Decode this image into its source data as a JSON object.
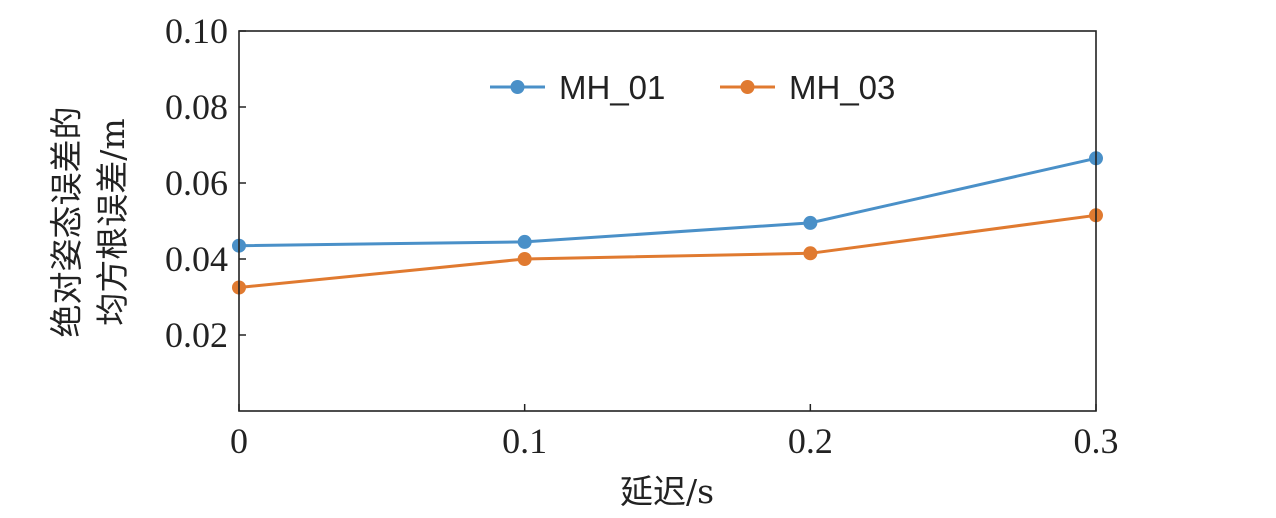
{
  "chart_data": {
    "type": "line",
    "x": [
      0,
      0.1,
      0.2,
      0.3
    ],
    "x_tick_labels": [
      "0",
      "0.1",
      "0.2",
      "0.3"
    ],
    "y_tick_labels": [
      "0.02",
      "0.04",
      "0.06",
      "0.08",
      "0.10"
    ],
    "y_ticks": [
      0.02,
      0.04,
      0.06,
      0.08,
      0.1
    ],
    "xlim": [
      0,
      0.3
    ],
    "ylim": [
      0,
      0.1
    ],
    "xlabel": "延迟/s",
    "ylabel_line1": "绝对姿态误差的",
    "ylabel_line2": "均方根误差/m",
    "grid": false,
    "legend_position": "top-center",
    "series": [
      {
        "name": "MH_01",
        "color": "#4a90c8",
        "values": [
          0.0435,
          0.0445,
          0.0495,
          0.0665
        ]
      },
      {
        "name": "MH_03",
        "color": "#e07a30",
        "values": [
          0.0325,
          0.04,
          0.0415,
          0.0515
        ]
      }
    ]
  }
}
